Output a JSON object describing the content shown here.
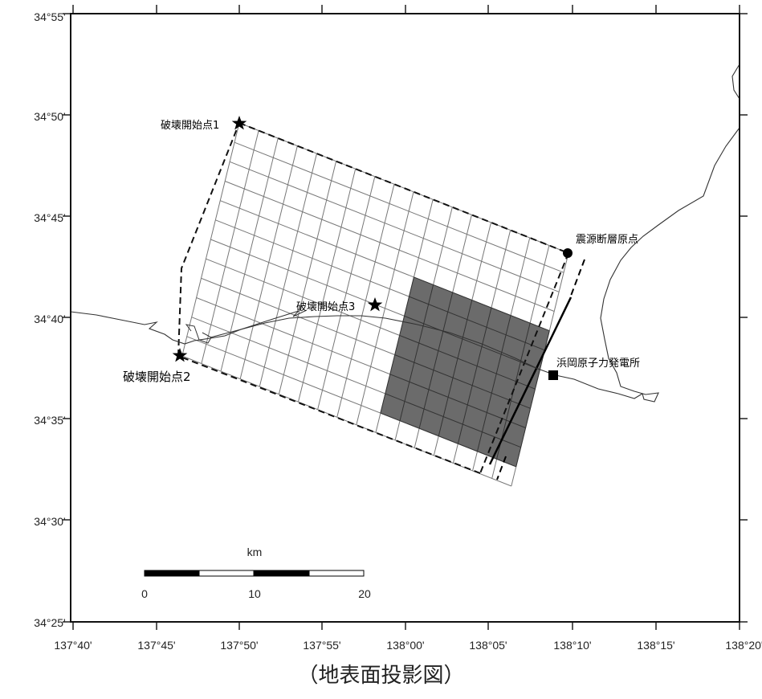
{
  "map": {
    "lat_labels": [
      "34°55'",
      "34°50'",
      "34°45'",
      "34°40'",
      "34°35'",
      "34°30'",
      "34°25'"
    ],
    "lon_labels": [
      "137°40'",
      "137°45'",
      "137°50'",
      "137°55'",
      "138°00'",
      "138°05'",
      "138°10'",
      "138°15'",
      "138°20'"
    ],
    "points": {
      "rupture_start_1": "破壊開始点1",
      "rupture_start_2": "破壊開始点2",
      "rupture_start_3": "破壊開始点3",
      "fault_origin": "震源断層原点",
      "power_plant": "浜岡原子力発電所"
    },
    "scale_bar": {
      "unit": "km",
      "ticks": [
        "0",
        "10",
        "20"
      ]
    },
    "colors": {
      "asperity": "#6b6b6b",
      "frame": "#111111",
      "grid": "#777777"
    }
  },
  "caption": "（地表面投影図）"
}
